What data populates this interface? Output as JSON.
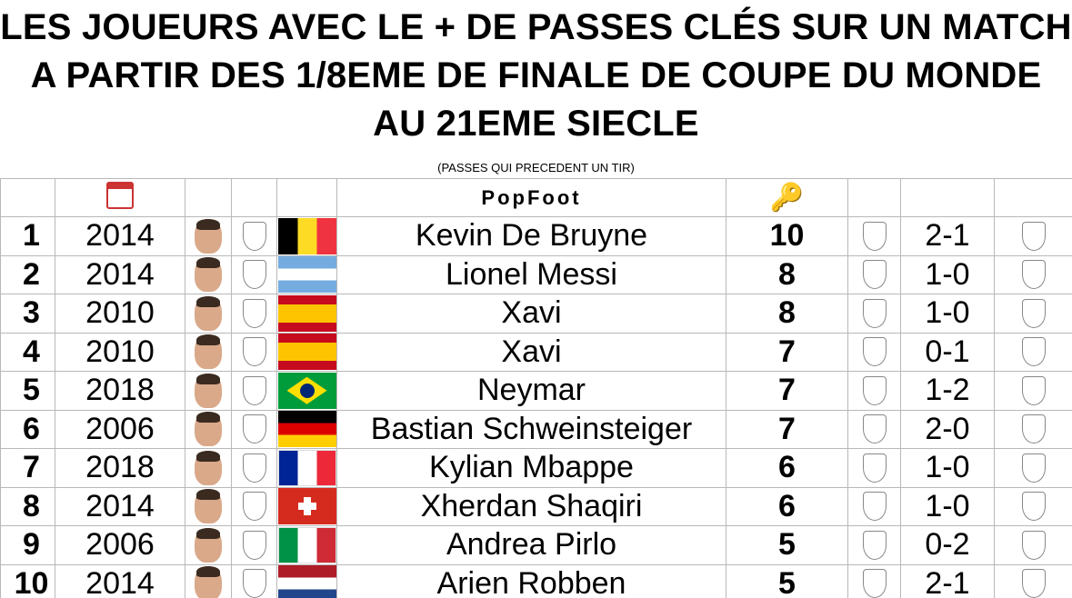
{
  "title": "LES JOUEURS AVEC LE + DE PASSES CLÉS SUR UN MATCH A PARTIR DES 1/8EME DE FINALE DE COUPE DU MONDE AU 21EME SIECLE",
  "subtitle": "(PASSES QUI PRECEDENT UN TIR)",
  "header": {
    "logo_text": "PopFoot",
    "icons": [
      "calendar-icon",
      "key-icon"
    ]
  },
  "rows": [
    {
      "rank": "1",
      "year": "2014",
      "crest": "BEL",
      "flag": "belgium",
      "player": "Kevin De Bruyne",
      "passes": "10",
      "score_crest": "BEL",
      "score": "2-1",
      "opp": "USA"
    },
    {
      "rank": "2",
      "year": "2014",
      "crest": "AFA",
      "flag": "argentina",
      "player": "Lionel Messi",
      "passes": "8",
      "score_crest": "AFA",
      "score": "1-0",
      "opp": "SFV"
    },
    {
      "rank": "3",
      "year": "2010",
      "crest": "ESP",
      "flag": "spain",
      "player": "Xavi",
      "passes": "8",
      "score_crest": "ESP",
      "score": "1-0",
      "opp": "POR"
    },
    {
      "rank": "4",
      "year": "2010",
      "crest": "ESP",
      "flag": "spain",
      "player": "Xavi",
      "passes": "7",
      "score_crest": "DFB",
      "score": "0-1",
      "opp": "ESP"
    },
    {
      "rank": "5",
      "year": "2018",
      "crest": "BRASIL",
      "flag": "brazil",
      "player": "Neymar",
      "passes": "7",
      "score_crest": "BRASIL",
      "score": "1-2",
      "opp": "BEL"
    },
    {
      "rank": "6",
      "year": "2006",
      "crest": "DFB",
      "flag": "germany",
      "player": "Bastian Schweinsteiger",
      "passes": "7",
      "score_crest": "DFB",
      "score": "2-0",
      "opp": "SWE"
    },
    {
      "rank": "7",
      "year": "2018",
      "crest": "FRANCE",
      "flag": "france",
      "player": "Kylian Mbappe",
      "passes": "6",
      "score_crest": "FRANCE",
      "score": "1-0",
      "opp": "BEL"
    },
    {
      "rank": "8",
      "year": "2014",
      "crest": "SFV",
      "flag": "switzerland",
      "player": "Xherdan Shaqiri",
      "passes": "6",
      "score_crest": "AFA",
      "score": "1-0",
      "opp": "SFV"
    },
    {
      "rank": "9",
      "year": "2006",
      "crest": "ITALIA",
      "flag": "italy",
      "player": "Andrea Pirlo",
      "passes": "5",
      "score_crest": "DFB",
      "score": "0-2",
      "opp": "ITALIA"
    },
    {
      "rank": "10",
      "year": "2014",
      "crest": "KNVB",
      "flag": "netherlands",
      "player": "Arien Robben",
      "passes": "5",
      "score_crest": "KNVB",
      "score": "2-1",
      "opp": "MEX"
    }
  ]
}
